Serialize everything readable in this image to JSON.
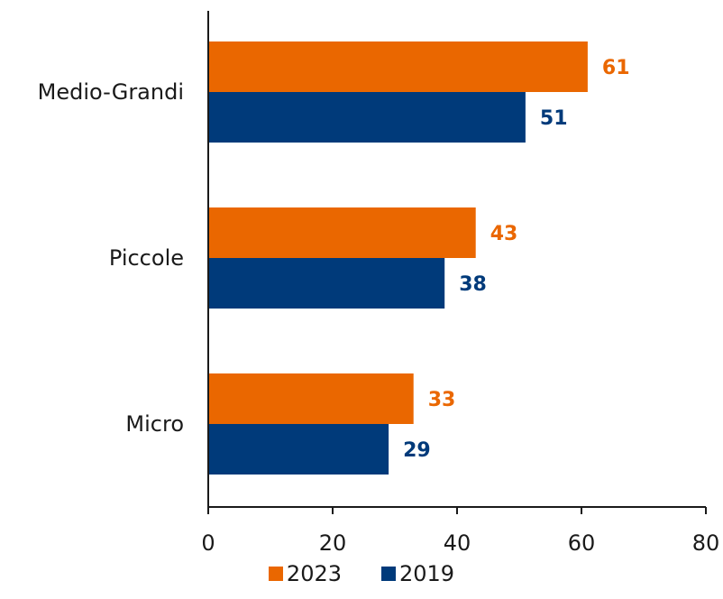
{
  "chart_data": {
    "type": "bar",
    "orientation": "horizontal",
    "categories": [
      "Medio-Grandi",
      "Piccole",
      "Micro"
    ],
    "series": [
      {
        "name": "2023",
        "color": "#EA6700",
        "values": [
          61,
          43,
          33
        ]
      },
      {
        "name": "2019",
        "color": "#003A7A",
        "values": [
          51,
          38,
          29
        ]
      }
    ],
    "xlim": [
      0,
      80
    ],
    "xticks": [
      0,
      20,
      40,
      60,
      80
    ],
    "title": "",
    "xlabel": "",
    "ylabel": "",
    "grid": false,
    "legend_position": "bottom"
  }
}
